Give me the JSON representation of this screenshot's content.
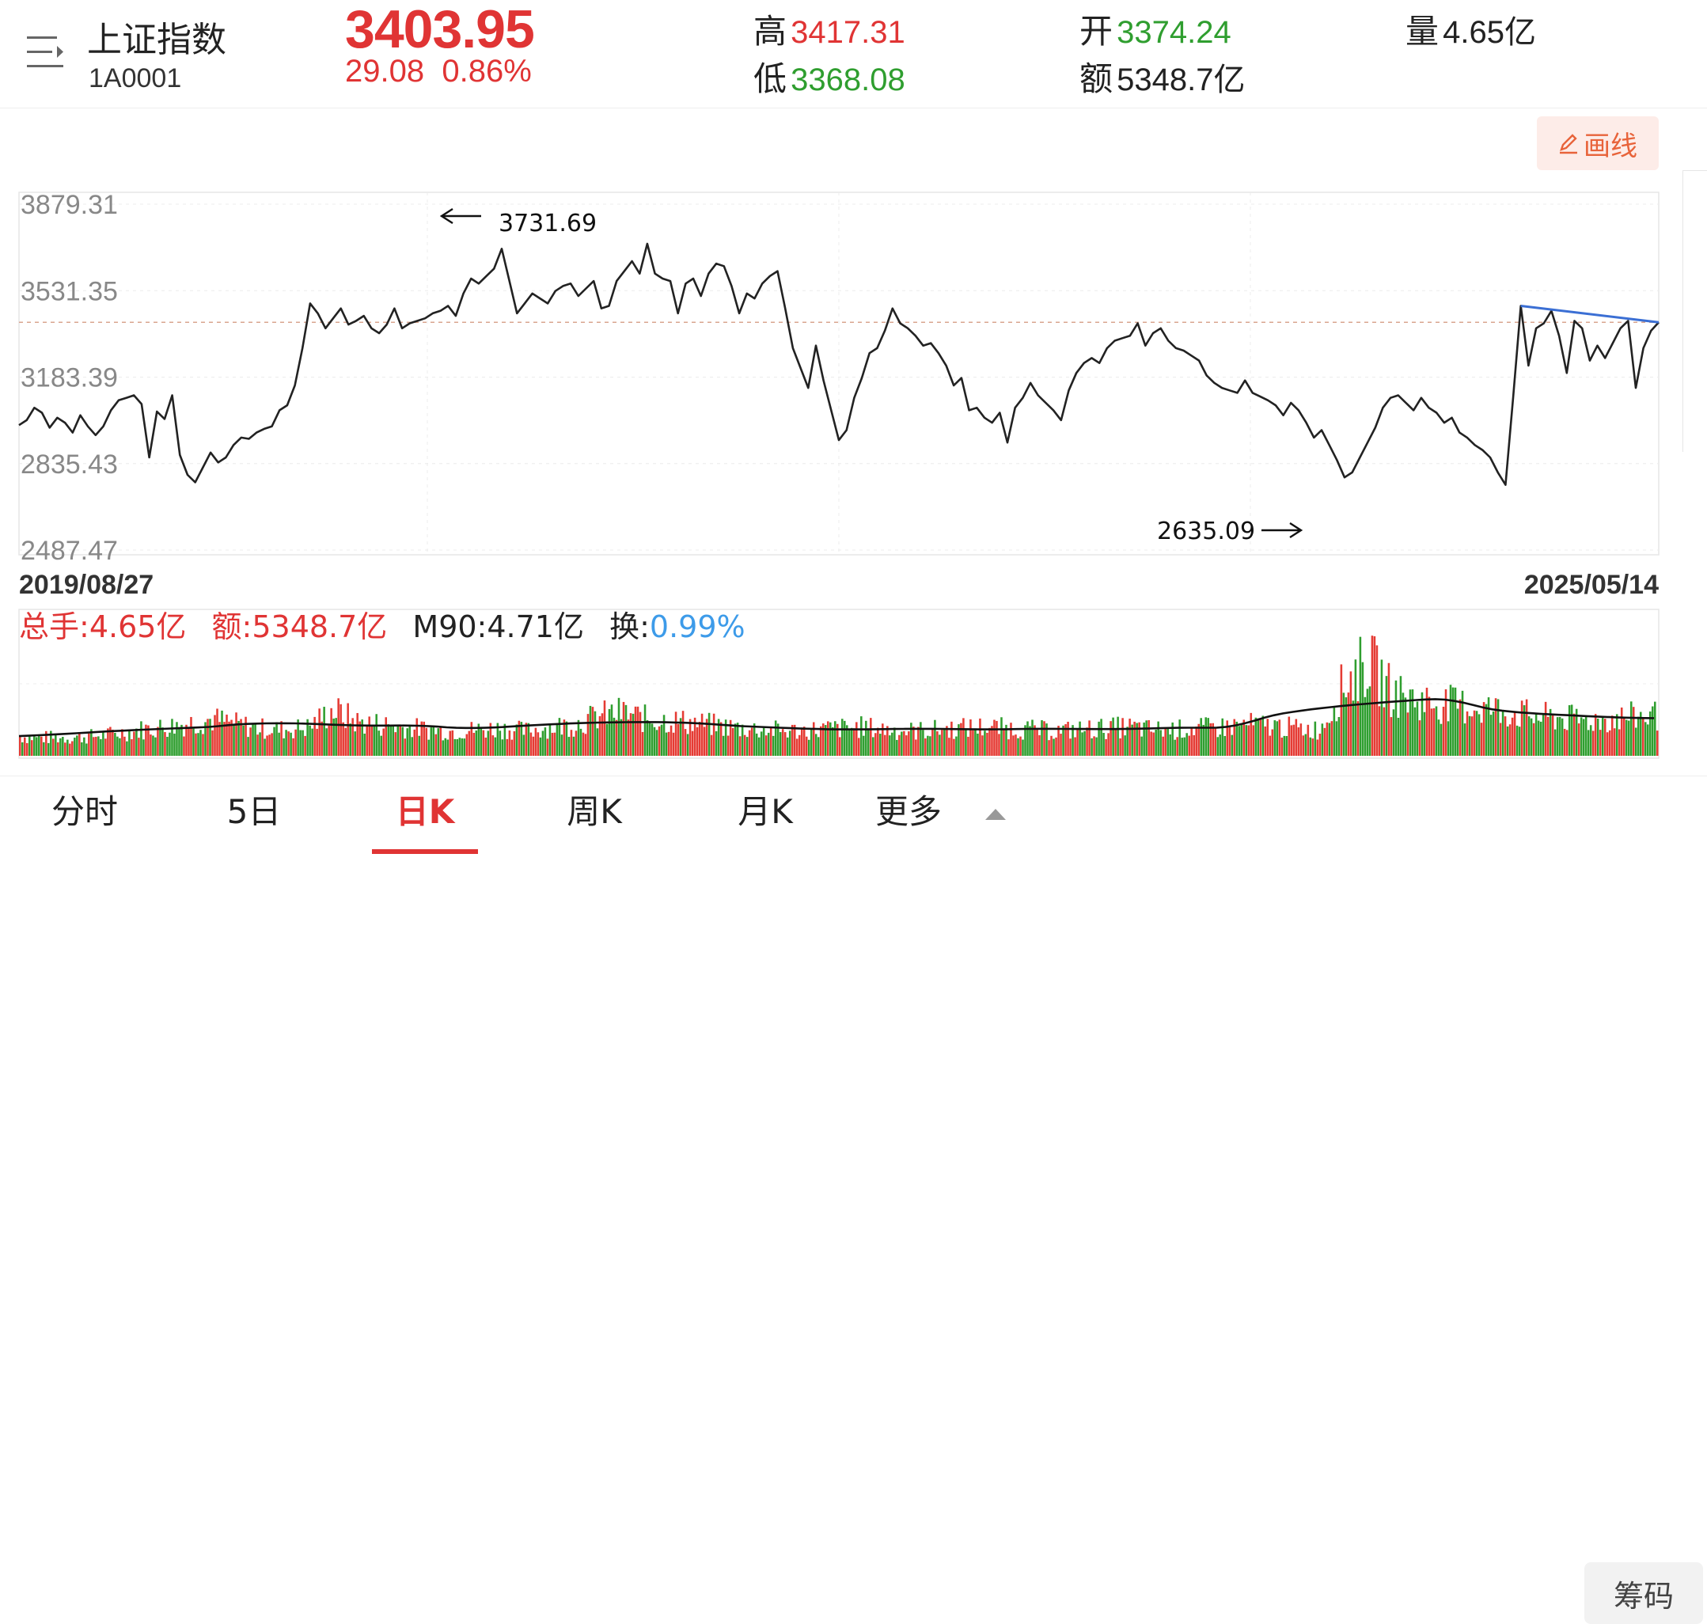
{
  "header": {
    "index_name": "上证指数",
    "index_code": "1A0001",
    "price": "3403.95",
    "change": "29.08",
    "change_pct": "0.86%",
    "high_label": "高",
    "high": "3417.31",
    "low_label": "低",
    "low": "3368.08",
    "open_label": "开",
    "open": "3374.24",
    "amount_label": "额",
    "amount": "5348.7亿",
    "volume_label": "量",
    "volume": "4.65亿",
    "menu_icon": "menu-collapse-icon"
  },
  "toolbar": {
    "draw_label": "画线",
    "draw_icon": "pencil-icon"
  },
  "chart_data": [
    {
      "type": "line",
      "y_ticks": [
        "3879.31",
        "3531.35",
        "3183.39",
        "2835.43",
        "2487.47"
      ],
      "ylim": [
        2487.47,
        3879.31
      ],
      "x_start": "2019/08/27",
      "x_end": "2025/05/14",
      "annotations": [
        {
          "text": "3731.69",
          "value": 3731.69,
          "arrow": "left"
        },
        {
          "text": "2635.09",
          "value": 2635.09,
          "arrow": "right"
        }
      ],
      "reference_line": 3403.95,
      "trendline_color": "#3b6fd4",
      "line_color": "#222222",
      "series": [
        {
          "values": [
            2990,
            3010,
            3060,
            3040,
            2980,
            3020,
            3000,
            2960,
            3030,
            2985,
            2950,
            2985,
            3050,
            3090,
            3100,
            3110,
            3075,
            2860,
            3045,
            3015,
            3110,
            2870,
            2790,
            2760,
            2820,
            2880,
            2840,
            2860,
            2910,
            2940,
            2935,
            2960,
            2975,
            2985,
            3050,
            3070,
            3150,
            3300,
            3480,
            3440,
            3380,
            3420,
            3460,
            3395,
            3410,
            3430,
            3380,
            3360,
            3395,
            3460,
            3380,
            3400,
            3410,
            3420,
            3440,
            3450,
            3470,
            3430,
            3520,
            3580,
            3560,
            3590,
            3620,
            3700,
            3570,
            3440,
            3480,
            3520,
            3500,
            3480,
            3530,
            3550,
            3560,
            3510,
            3540,
            3570,
            3460,
            3470,
            3570,
            3610,
            3650,
            3600,
            3720,
            3600,
            3580,
            3570,
            3440,
            3560,
            3580,
            3510,
            3600,
            3640,
            3630,
            3550,
            3440,
            3520,
            3500,
            3560,
            3590,
            3610,
            3460,
            3300,
            3220,
            3140,
            3310,
            3170,
            3050,
            2930,
            2970,
            3100,
            3180,
            3280,
            3300,
            3370,
            3460,
            3400,
            3380,
            3350,
            3310,
            3320,
            3280,
            3230,
            3150,
            3180,
            3050,
            3060,
            3020,
            3000,
            3040,
            2920,
            3060,
            3100,
            3160,
            3110,
            3080,
            3050,
            3010,
            3130,
            3200,
            3240,
            3260,
            3240,
            3300,
            3330,
            3340,
            3350,
            3400,
            3310,
            3360,
            3380,
            3330,
            3300,
            3290,
            3270,
            3250,
            3190,
            3160,
            3140,
            3130,
            3120,
            3170,
            3120,
            3105,
            3090,
            3070,
            3030,
            3080,
            3050,
            3000,
            2940,
            2970,
            2910,
            2850,
            2780,
            2800,
            2860,
            2920,
            2980,
            3060,
            3100,
            3110,
            3080,
            3050,
            3100,
            3060,
            3040,
            3000,
            3020,
            2960,
            2940,
            2910,
            2890,
            2860,
            2800,
            2750,
            3100,
            3470,
            3230,
            3380,
            3400,
            3450,
            3350,
            3200,
            3410,
            3380,
            3250,
            3310,
            3260,
            3320,
            3380,
            3410,
            3140,
            3300,
            3370,
            3403.95
          ]
        }
      ]
    },
    {
      "type": "bar",
      "legend": [
        {
          "label": "总手:",
          "value": "4.65亿",
          "color": "#e03434"
        },
        {
          "label": "额:",
          "value": "5348.7亿",
          "color": "#e03434"
        },
        {
          "label": "M90:",
          "value": "4.71亿",
          "color": "#222222"
        },
        {
          "label": "换:",
          "value": "0.99%",
          "label_color": "#222222",
          "color": "#3d9be9"
        }
      ],
      "up_color": "#e53b34",
      "down_color": "#2f9e2f",
      "ma_color": "#111111",
      "volume_profile": [
        0.15,
        0.14,
        0.14,
        0.15,
        0.17,
        0.2,
        0.22,
        0.25,
        0.28,
        0.24,
        0.21,
        0.2,
        0.22,
        0.35,
        0.26,
        0.24,
        0.22,
        0.2,
        0.19,
        0.2,
        0.21,
        0.19,
        0.22,
        0.24,
        0.3,
        0.33,
        0.28,
        0.27,
        0.25,
        0.23,
        0.21,
        0.2,
        0.19,
        0.2,
        0.21,
        0.22,
        0.2,
        0.19,
        0.2,
        0.21,
        0.22,
        0.21,
        0.2,
        0.19,
        0.2,
        0.21,
        0.22,
        0.2,
        0.2,
        0.21,
        0.22,
        0.24,
        0.23,
        0.21,
        0.2,
        0.55,
        0.72,
        0.48,
        0.42,
        0.4,
        0.38,
        0.36,
        0.33,
        0.3,
        0.29,
        0.27,
        0.28,
        0.3,
        0.31
      ]
    }
  ],
  "tabs": [
    {
      "label": "分时"
    },
    {
      "label": "5日"
    },
    {
      "label": "日K"
    },
    {
      "label": "周K"
    },
    {
      "label": "月K"
    },
    {
      "label": "更多"
    }
  ],
  "chip_button": "筹码"
}
